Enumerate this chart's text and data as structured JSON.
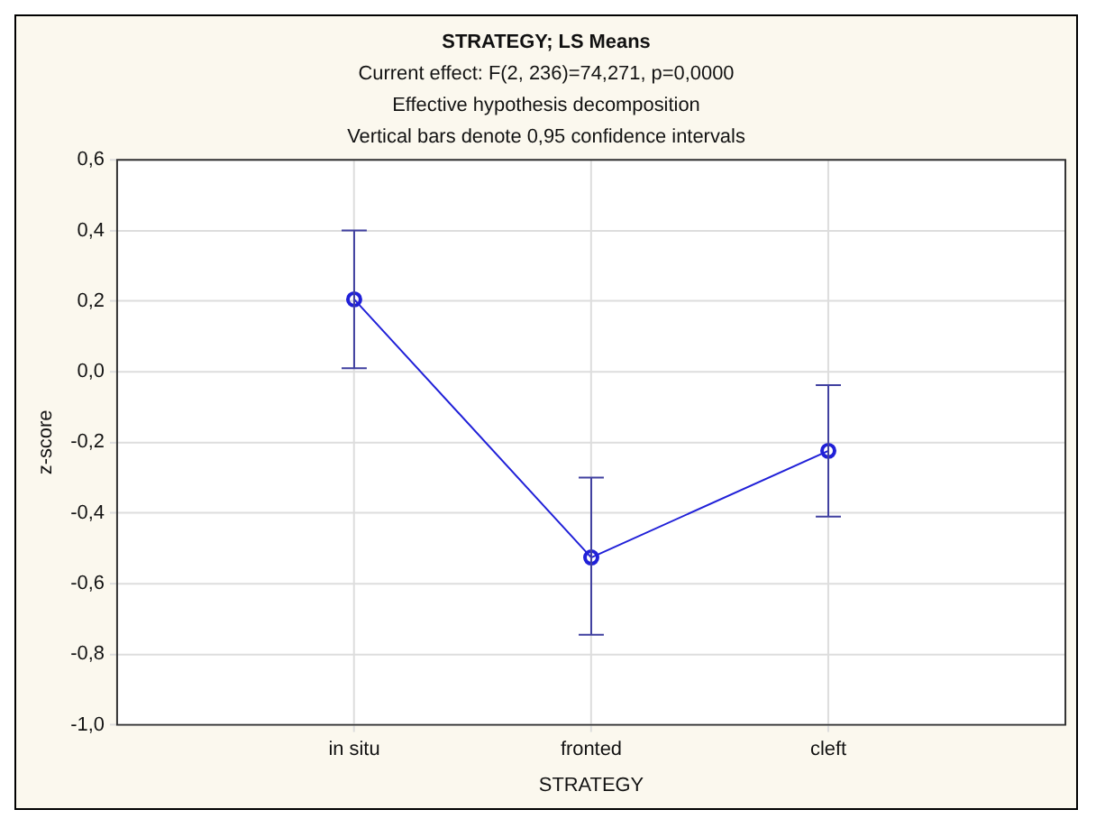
{
  "chart_data": {
    "type": "line",
    "title": "STRATEGY; LS Means",
    "subtitle": [
      "Current effect: F(2, 236)=74,271, p=0,0000",
      "Effective hypothesis decomposition",
      "Vertical bars denote 0,95 confidence intervals"
    ],
    "xlabel": "STRATEGY",
    "ylabel": "z-score",
    "categories": [
      "in situ",
      "fronted",
      "cleft"
    ],
    "series": [
      {
        "color": "#2020d8",
        "values": [
          0.205,
          -0.526,
          -0.224
        ],
        "errors": [
          [
            0.01,
            0.4
          ],
          [
            -0.745,
            -0.3
          ],
          [
            -0.41,
            -0.038
          ]
        ]
      }
    ],
    "ylim": [
      -1.0,
      0.6
    ],
    "yticks": [
      {
        "value": -1.0,
        "label": "-1,0"
      },
      {
        "value": -0.8,
        "label": "-0,8"
      },
      {
        "value": -0.6,
        "label": "-0,6"
      },
      {
        "value": -0.4,
        "label": "-0,4"
      },
      {
        "value": -0.2,
        "label": "-0,2"
      },
      {
        "value": 0,
        "label": "0,0"
      },
      {
        "value": 0.2,
        "label": "0,2"
      },
      {
        "value": 0.4,
        "label": "0,4"
      },
      {
        "value": 0.6,
        "label": "0,6"
      }
    ],
    "grid": true,
    "marker": "circle",
    "line_style": "solid"
  }
}
